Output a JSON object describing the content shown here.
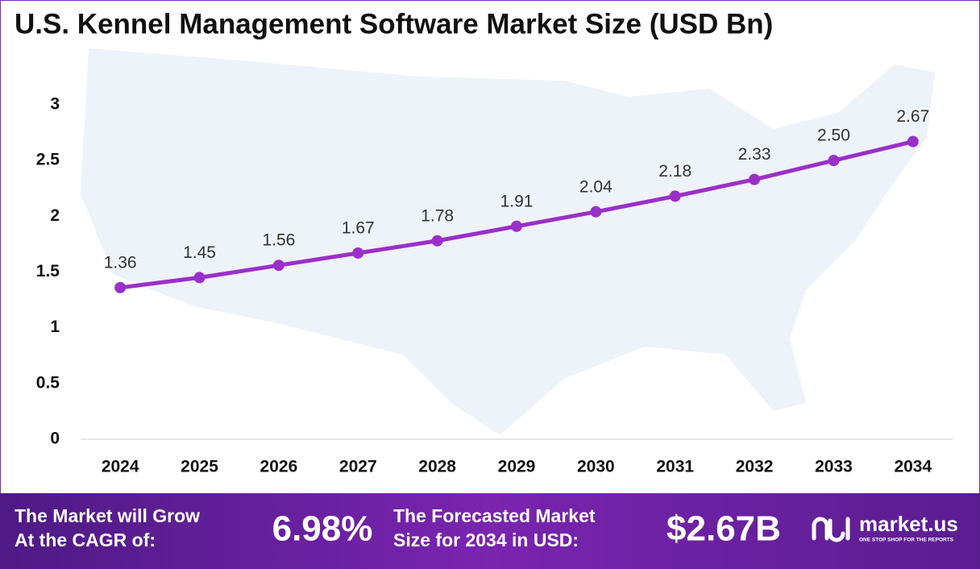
{
  "chart_data": {
    "type": "line",
    "title": "U.S. Kennel Management Software Market Size (USD Bn)",
    "categories": [
      "2024",
      "2025",
      "2026",
      "2027",
      "2028",
      "2029",
      "2030",
      "2031",
      "2032",
      "2033",
      "2034"
    ],
    "values": [
      1.36,
      1.45,
      1.56,
      1.67,
      1.78,
      1.91,
      2.04,
      2.18,
      2.33,
      2.5,
      2.67
    ],
    "value_labels": [
      "1.36",
      "1.45",
      "1.56",
      "1.67",
      "1.78",
      "1.91",
      "2.04",
      "2.18",
      "2.33",
      "2.50",
      "2.67"
    ],
    "color": "#9b2fc9",
    "ylim": [
      0,
      3
    ],
    "yticks": [
      0,
      0.5,
      1,
      1.5,
      2,
      2.5,
      3
    ],
    "grid": false
  },
  "footer": {
    "cagr_text": [
      "The Market will Grow",
      "At the CAGR of:"
    ],
    "cagr_value": "6.98%",
    "forecast_text": [
      "The Forecasted Market",
      "Size for 2034 in USD:"
    ],
    "forecast_value": "$2.67B",
    "brand": "market.us",
    "tagline": "ONE STOP SHOP FOR THE REPORTS"
  }
}
